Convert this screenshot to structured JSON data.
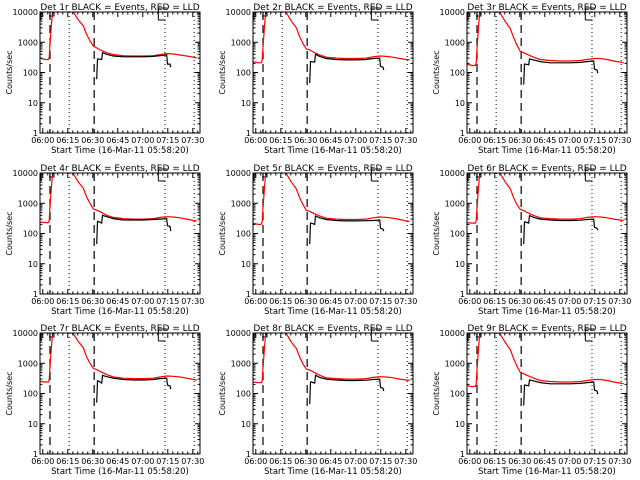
{
  "chart_data": {
    "type": "line",
    "layout": "3x3 grid",
    "common": {
      "ylabel": "Counts/sec",
      "xlabel": "Start Time (16-Mar-11 05:58:20)",
      "yscale": "log",
      "ylim": [
        1,
        10000
      ],
      "yticks": [
        1,
        10,
        100,
        1000,
        10000
      ],
      "ytick_labels": [
        "1",
        "10",
        "100",
        "1000",
        "10000"
      ],
      "x_units": "minutes after 05:58:20",
      "xlim": [
        0,
        96
      ],
      "xticks": [
        1.67,
        16.67,
        31.67,
        46.67,
        61.67,
        76.67,
        91.67
      ],
      "xtick_labels": [
        "06:00",
        "06:15",
        "06:30",
        "06:45",
        "07:00",
        "07:15",
        "07:30"
      ],
      "dashed_vlines": [
        6.0,
        32.5
      ],
      "dotted_vlines": [
        17.5,
        75.0,
        92.5
      ],
      "series_colors": {
        "events": "#000000",
        "lld": "#ff0000"
      }
    },
    "panels": [
      {
        "title": "Det 1r BLACK = Events, RED = LLD",
        "lld": {
          "x": [
            0,
            3,
            5,
            5.5,
            6,
            6.5,
            7,
            7.5,
            8,
            9,
            11,
            14,
            17,
            20,
            23,
            26,
            28,
            30,
            32,
            34,
            36,
            40,
            44,
            50,
            56,
            62,
            68,
            72,
            76,
            80,
            84,
            88,
            92,
            94
          ],
          "y": [
            300,
            270,
            270,
            300,
            900,
            2000,
            5000,
            9000,
            12000,
            14000,
            14000,
            14000,
            13000,
            10000,
            5500,
            3500,
            1800,
            1100,
            750,
            650,
            560,
            450,
            390,
            360,
            350,
            350,
            360,
            390,
            420,
            410,
            380,
            350,
            320,
            300
          ]
        },
        "events": {
          "x": [
            0,
            3,
            5,
            5.5,
            6,
            6.5,
            7,
            7.5,
            8,
            10,
            12,
            33,
            34,
            34.5,
            35,
            37,
            37.5,
            40,
            44,
            50,
            56,
            62,
            68,
            72,
            76,
            76.5,
            78,
            78.5
          ],
          "y": [
            11000,
            11000,
            11000,
            11000,
            11000,
            11000,
            11000,
            11000,
            11000,
            11000,
            11000,
            null,
            60,
            280,
            280,
            270,
            450,
            400,
            350,
            330,
            330,
            330,
            340,
            360,
            380,
            190,
            190,
            150
          ]
        },
        "events_flat_top": [
          [
            0,
            10500
          ],
          [
            5,
            10500
          ],
          [
            6,
            12000
          ],
          [
            8,
            12000
          ]
        ],
        "marker_top_right": 74
      },
      {
        "title": "Det 2r BLACK = Events, RED = LLD",
        "lld": {
          "x": [
            0,
            3,
            5,
            5.5,
            6,
            6.5,
            7,
            7.5,
            8,
            9,
            11,
            14,
            17,
            20,
            23,
            26,
            28,
            30,
            32,
            34,
            36,
            40,
            44,
            50,
            56,
            62,
            68,
            72,
            76,
            80,
            84,
            88,
            92,
            94
          ],
          "y": [
            230,
            210,
            210,
            260,
            700,
            1600,
            4000,
            8000,
            11000,
            13000,
            14000,
            14000,
            13000,
            9500,
            5000,
            3000,
            1500,
            900,
            600,
            560,
            480,
            380,
            320,
            300,
            290,
            290,
            300,
            330,
            350,
            340,
            320,
            290,
            270,
            260
          ]
        },
        "events": {
          "x": [
            33,
            34,
            34.5,
            35,
            37,
            37.5,
            40,
            44,
            50,
            56,
            62,
            68,
            72,
            76,
            76.5,
            78,
            78.5
          ],
          "y": [
            null,
            45,
            230,
            230,
            220,
            400,
            340,
            290,
            270,
            260,
            260,
            270,
            290,
            300,
            160,
            150,
            120
          ]
        }
      },
      {
        "title": "Det 3r BLACK = Events, RED = LLD",
        "lld": {
          "x": [
            0,
            3,
            5,
            5.5,
            6,
            6.5,
            7,
            7.5,
            8,
            9,
            11,
            14,
            17,
            20,
            23,
            26,
            28,
            30,
            32,
            34,
            36,
            40,
            44,
            50,
            56,
            62,
            68,
            72,
            76,
            80,
            84,
            88,
            92,
            94
          ],
          "y": [
            190,
            170,
            170,
            200,
            600,
            1400,
            3800,
            7500,
            11000,
            13000,
            14000,
            14000,
            13000,
            9000,
            4800,
            2800,
            1400,
            800,
            500,
            450,
            400,
            320,
            270,
            250,
            240,
            240,
            250,
            270,
            290,
            290,
            270,
            240,
            220,
            210
          ]
        },
        "events": {
          "x": [
            33,
            34,
            34.5,
            35,
            37,
            37.5,
            40,
            44,
            50,
            56,
            62,
            68,
            72,
            76,
            76.5,
            78,
            78.5
          ],
          "y": [
            null,
            40,
            190,
            190,
            180,
            280,
            260,
            230,
            210,
            210,
            210,
            215,
            230,
            240,
            130,
            120,
            95
          ]
        }
      },
      {
        "title": "Det 4r BLACK = Events, RED = LLD",
        "lld": {
          "x": [
            0,
            3,
            5,
            5.5,
            6,
            6.5,
            7,
            7.5,
            8,
            9,
            11,
            14,
            17,
            20,
            23,
            26,
            28,
            30,
            32,
            34,
            36,
            40,
            44,
            50,
            56,
            62,
            68,
            72,
            76,
            80,
            84,
            88,
            92,
            94
          ],
          "y": [
            240,
            230,
            230,
            260,
            800,
            1800,
            4500,
            8500,
            11000,
            13000,
            14000,
            14000,
            13000,
            9500,
            5000,
            3200,
            1600,
            1000,
            650,
            590,
            530,
            400,
            340,
            310,
            300,
            300,
            310,
            340,
            360,
            350,
            330,
            300,
            270,
            260
          ]
        },
        "events": {
          "x": [
            33,
            34,
            34.5,
            35,
            37,
            37.5,
            40,
            44,
            50,
            56,
            62,
            68,
            72,
            76,
            76.5,
            78,
            78.5
          ],
          "y": [
            null,
            45,
            250,
            250,
            220,
            400,
            360,
            310,
            280,
            280,
            280,
            290,
            300,
            310,
            180,
            170,
            120
          ]
        }
      },
      {
        "title": "Det 5r BLACK = Events, RED = LLD",
        "lld": {
          "x": [
            0,
            3,
            5,
            5.5,
            6,
            6.5,
            7,
            7.5,
            8,
            9,
            11,
            14,
            17,
            20,
            23,
            26,
            28,
            30,
            32,
            34,
            36,
            40,
            44,
            50,
            56,
            62,
            68,
            72,
            76,
            80,
            84,
            88,
            92,
            94
          ],
          "y": [
            220,
            200,
            200,
            250,
            700,
            1600,
            4000,
            8000,
            11000,
            13000,
            14000,
            14000,
            13000,
            9500,
            5000,
            3000,
            1500,
            900,
            580,
            540,
            470,
            380,
            320,
            300,
            290,
            290,
            300,
            330,
            350,
            340,
            320,
            290,
            260,
            250
          ]
        },
        "events": {
          "x": [
            33,
            34,
            34.5,
            35,
            37,
            37.5,
            40,
            44,
            50,
            56,
            62,
            68,
            72,
            76,
            76.5,
            78,
            78.5
          ],
          "y": [
            null,
            45,
            220,
            220,
            200,
            380,
            330,
            290,
            270,
            260,
            260,
            265,
            270,
            280,
            150,
            140,
            120
          ]
        }
      },
      {
        "title": "Det 6r BLACK = Events, RED = LLD",
        "lld": {
          "x": [
            0,
            3,
            5,
            5.5,
            6,
            6.5,
            7,
            7.5,
            8,
            9,
            11,
            14,
            17,
            20,
            23,
            26,
            28,
            30,
            32,
            34,
            36,
            40,
            44,
            50,
            56,
            62,
            68,
            72,
            76,
            80,
            84,
            88,
            92,
            94
          ],
          "y": [
            230,
            220,
            220,
            260,
            700,
            1600,
            4000,
            8000,
            11000,
            13000,
            14000,
            14000,
            13000,
            9500,
            5000,
            3000,
            1500,
            900,
            620,
            570,
            500,
            390,
            330,
            310,
            300,
            300,
            310,
            340,
            360,
            350,
            330,
            300,
            280,
            270
          ]
        },
        "events": {
          "x": [
            33,
            34,
            34.5,
            35,
            37,
            37.5,
            40,
            44,
            50,
            56,
            62,
            68,
            72,
            76,
            76.5,
            78,
            78.5
          ],
          "y": [
            null,
            45,
            240,
            240,
            220,
            390,
            340,
            300,
            280,
            270,
            270,
            275,
            290,
            300,
            160,
            150,
            130
          ]
        }
      },
      {
        "title": "Det 7r BLACK = Events, RED = LLD",
        "lld": {
          "x": [
            0,
            3,
            5,
            5.5,
            6,
            6.5,
            7,
            7.5,
            8,
            9,
            11,
            14,
            17,
            20,
            23,
            26,
            28,
            30,
            32,
            34,
            36,
            40,
            44,
            50,
            56,
            62,
            68,
            72,
            76,
            80,
            84,
            88,
            92,
            94
          ],
          "y": [
            250,
            240,
            240,
            280,
            800,
            1800,
            4500,
            8500,
            11000,
            13000,
            14000,
            14000,
            13000,
            9500,
            5200,
            3300,
            1600,
            1000,
            680,
            610,
            540,
            420,
            350,
            320,
            310,
            310,
            320,
            350,
            380,
            370,
            350,
            320,
            290,
            280
          ]
        },
        "events": {
          "x": [
            33,
            34,
            34.5,
            35,
            37,
            37.5,
            40,
            44,
            50,
            56,
            62,
            68,
            72,
            76,
            76.5,
            78,
            78.5
          ],
          "y": [
            null,
            50,
            260,
            260,
            220,
            400,
            360,
            320,
            290,
            280,
            280,
            290,
            310,
            320,
            190,
            180,
            140
          ]
        }
      },
      {
        "title": "Det 8r BLACK = Events, RED = LLD",
        "lld": {
          "x": [
            0,
            3,
            5,
            5.5,
            6,
            6.5,
            7,
            7.5,
            8,
            9,
            11,
            14,
            17,
            20,
            23,
            26,
            28,
            30,
            32,
            34,
            36,
            40,
            44,
            50,
            56,
            62,
            68,
            72,
            76,
            80,
            84,
            88,
            92,
            94
          ],
          "y": [
            240,
            230,
            230,
            260,
            700,
            1600,
            4000,
            8000,
            11000,
            13000,
            14000,
            14000,
            13000,
            9500,
            5000,
            3100,
            1600,
            950,
            640,
            600,
            520,
            400,
            330,
            310,
            300,
            300,
            310,
            340,
            360,
            350,
            330,
            300,
            280,
            270
          ]
        },
        "events": {
          "x": [
            33,
            34,
            34.5,
            35,
            37,
            37.5,
            40,
            44,
            50,
            56,
            62,
            68,
            72,
            76,
            76.5,
            78,
            78.5
          ],
          "y": [
            null,
            45,
            240,
            240,
            220,
            400,
            340,
            300,
            280,
            270,
            270,
            275,
            290,
            300,
            160,
            150,
            120
          ]
        }
      },
      {
        "title": "Det 9r BLACK = Events, RED = LLD",
        "lld": {
          "x": [
            0,
            3,
            5,
            5.5,
            6,
            6.5,
            7,
            7.5,
            8,
            9,
            11,
            14,
            17,
            20,
            23,
            26,
            28,
            30,
            32,
            34,
            36,
            40,
            44,
            50,
            56,
            62,
            68,
            72,
            76,
            80,
            84,
            88,
            92,
            94
          ],
          "y": [
            180,
            170,
            170,
            200,
            600,
            1400,
            3800,
            7500,
            11000,
            13000,
            14000,
            14000,
            13000,
            9000,
            4800,
            2800,
            1400,
            800,
            500,
            450,
            400,
            320,
            270,
            250,
            240,
            240,
            250,
            270,
            290,
            290,
            270,
            240,
            220,
            210
          ]
        },
        "events": {
          "x": [
            33,
            34,
            34.5,
            35,
            37,
            37.5,
            40,
            44,
            50,
            56,
            62,
            68,
            72,
            76,
            76.5,
            78,
            78.5
          ],
          "y": [
            null,
            40,
            190,
            190,
            180,
            280,
            260,
            230,
            210,
            210,
            210,
            215,
            230,
            240,
            130,
            120,
            95
          ]
        }
      }
    ]
  }
}
